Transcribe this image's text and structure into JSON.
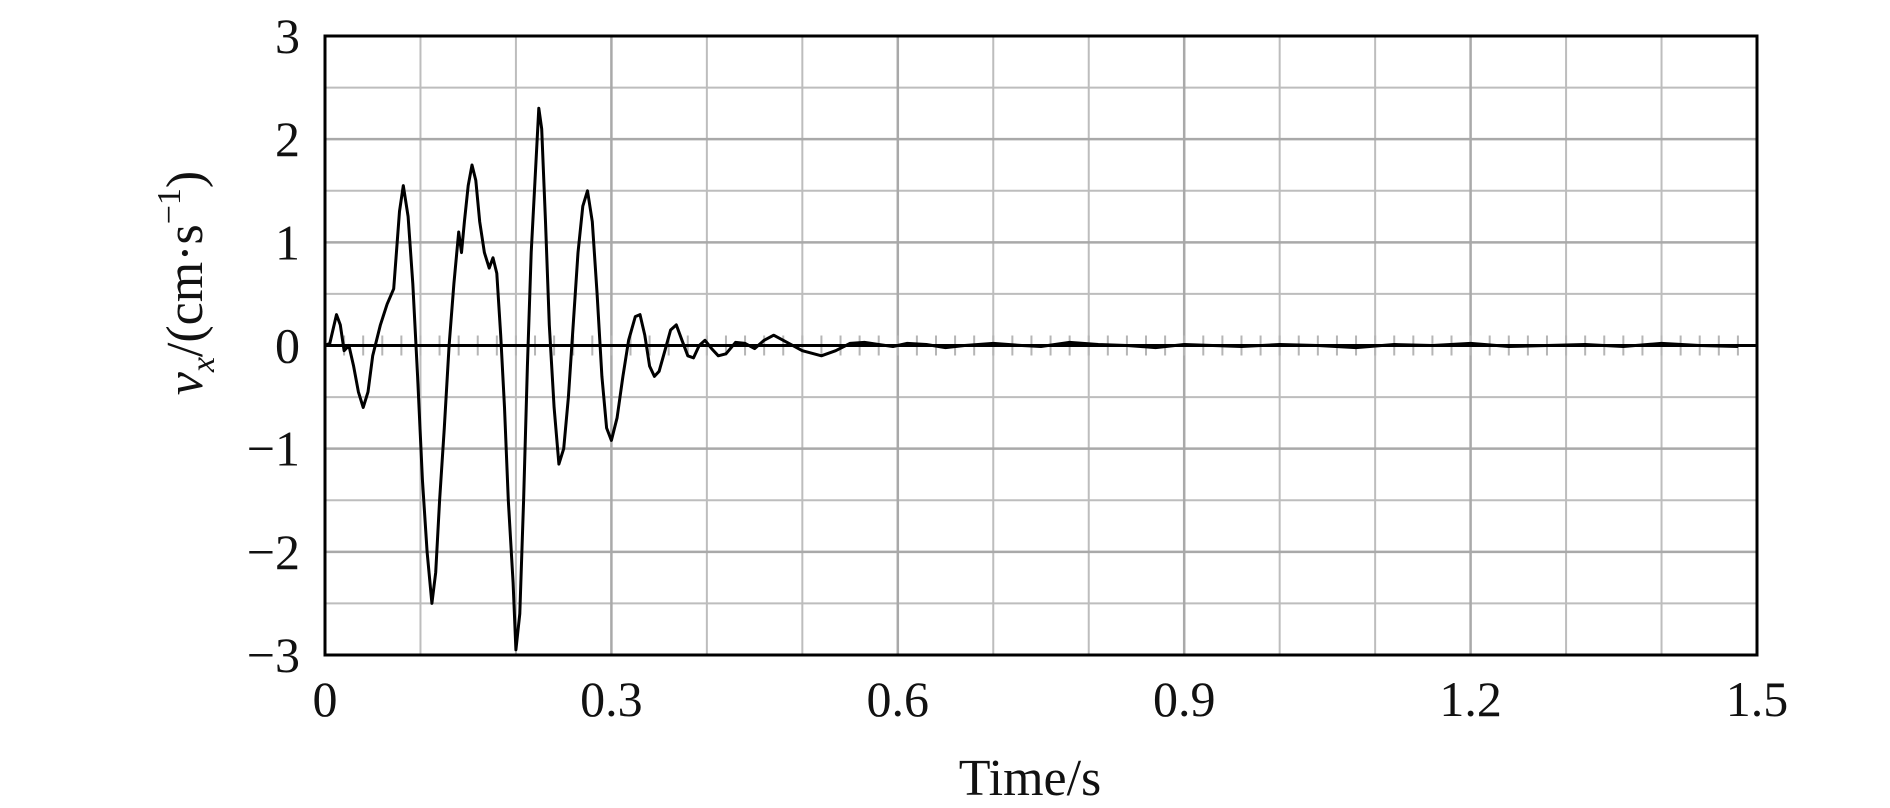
{
  "chart_data": {
    "type": "line",
    "xlabel": "Time/s",
    "ylabel": {
      "var": "v",
      "sub": "x",
      "unit_open": "/(cm·s",
      "exponent": "−1",
      "close": ")"
    },
    "xlim": [
      0,
      1.5
    ],
    "ylim": [
      -3,
      3
    ],
    "xticks": [
      0,
      0.3,
      0.6,
      0.9,
      1.2,
      1.5
    ],
    "xtick_labels": [
      "0",
      "0.3",
      "0.6",
      "0.9",
      "1.2",
      "1.5"
    ],
    "yticks": [
      3,
      2,
      1,
      0,
      -1,
      -2,
      -3
    ],
    "ytick_labels": [
      "3",
      "2",
      "1",
      "0",
      "−1",
      "−2",
      "−3"
    ],
    "grid": true,
    "series": [
      {
        "color": "#000000",
        "x": [
          0,
          0.005,
          0.012,
          0.016,
          0.02,
          0.025,
          0.03,
          0.035,
          0.04,
          0.045,
          0.05,
          0.058,
          0.065,
          0.072,
          0.078,
          0.082,
          0.087,
          0.092,
          0.097,
          0.102,
          0.107,
          0.112,
          0.116,
          0.12,
          0.125,
          0.13,
          0.135,
          0.14,
          0.143,
          0.146,
          0.15,
          0.154,
          0.158,
          0.162,
          0.167,
          0.172,
          0.176,
          0.18,
          0.184,
          0.188,
          0.192,
          0.197,
          0.2,
          0.204,
          0.208,
          0.212,
          0.216,
          0.22,
          0.224,
          0.227,
          0.231,
          0.235,
          0.24,
          0.245,
          0.25,
          0.255,
          0.26,
          0.265,
          0.27,
          0.275,
          0.28,
          0.285,
          0.29,
          0.295,
          0.3,
          0.306,
          0.312,
          0.318,
          0.325,
          0.33,
          0.335,
          0.34,
          0.345,
          0.35,
          0.356,
          0.362,
          0.368,
          0.374,
          0.38,
          0.386,
          0.392,
          0.398,
          0.405,
          0.412,
          0.42,
          0.43,
          0.44,
          0.45,
          0.46,
          0.47,
          0.48,
          0.5,
          0.52,
          0.535,
          0.55,
          0.565,
          0.58,
          0.595,
          0.61,
          0.63,
          0.65,
          0.67,
          0.7,
          0.73,
          0.75,
          0.78,
          0.81,
          0.84,
          0.87,
          0.9,
          0.93,
          0.96,
          1.0,
          1.04,
          1.08,
          1.12,
          1.16,
          1.2,
          1.24,
          1.28,
          1.32,
          1.36,
          1.4,
          1.44,
          1.48
        ],
        "y": [
          0,
          0.02,
          0.3,
          0.2,
          -0.05,
          0.0,
          -0.2,
          -0.45,
          -0.6,
          -0.45,
          -0.1,
          0.2,
          0.4,
          0.55,
          1.3,
          1.55,
          1.25,
          0.6,
          -0.3,
          -1.3,
          -2.0,
          -2.5,
          -2.2,
          -1.5,
          -0.8,
          0.0,
          0.6,
          1.1,
          0.9,
          1.2,
          1.55,
          1.75,
          1.6,
          1.2,
          0.9,
          0.75,
          0.85,
          0.7,
          0.1,
          -0.6,
          -1.5,
          -2.3,
          -2.95,
          -2.6,
          -1.5,
          -0.2,
          0.9,
          1.6,
          2.3,
          2.1,
          1.2,
          0.2,
          -0.6,
          -1.15,
          -1.0,
          -0.5,
          0.2,
          0.9,
          1.35,
          1.5,
          1.2,
          0.5,
          -0.3,
          -0.8,
          -0.92,
          -0.7,
          -0.3,
          0.05,
          0.28,
          0.3,
          0.1,
          -0.2,
          -0.3,
          -0.25,
          -0.05,
          0.15,
          0.2,
          0.05,
          -0.1,
          -0.12,
          0.0,
          0.05,
          -0.03,
          -0.1,
          -0.08,
          0.03,
          0.02,
          -0.03,
          0.05,
          0.1,
          0.05,
          -0.05,
          -0.1,
          -0.05,
          0.02,
          0.03,
          0.01,
          -0.01,
          0.02,
          0.01,
          -0.02,
          0.0,
          0.02,
          0.0,
          -0.01,
          0.03,
          0.01,
          0.0,
          -0.02,
          0.01,
          0.0,
          -0.01,
          0.01,
          0.0,
          -0.02,
          0.01,
          0.0,
          0.02,
          -0.01,
          0.0,
          0.01,
          -0.01,
          0.02,
          0.0,
          -0.01
        ]
      }
    ]
  }
}
